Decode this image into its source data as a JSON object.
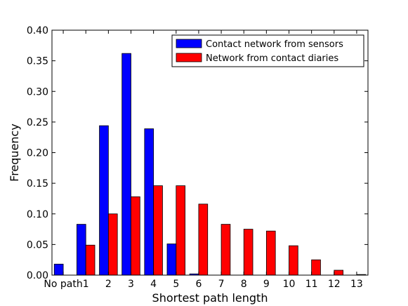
{
  "chart_data": {
    "type": "bar",
    "xlabel": "Shortest path length",
    "ylabel": "Frequency",
    "ylim": [
      0,
      0.4
    ],
    "yticks": [
      "0.00",
      "0.05",
      "0.10",
      "0.15",
      "0.20",
      "0.25",
      "0.30",
      "0.35",
      "0.40"
    ],
    "grid": false,
    "legend_position": "top-right",
    "categories": [
      "No path",
      "1",
      "2",
      "3",
      "4",
      "5",
      "6",
      "7",
      "8",
      "9",
      "10",
      "11",
      "12",
      "13"
    ],
    "series": [
      {
        "name": "Contact network from sensors",
        "color": "#0000ff",
        "values": [
          0.018,
          0.083,
          0.244,
          0.362,
          0.239,
          0.051,
          0.002,
          0,
          0,
          0,
          0,
          0,
          0,
          0
        ]
      },
      {
        "name": "Network from contact diaries",
        "color": "#ff0000",
        "values": [
          0,
          0.049,
          0.1,
          0.128,
          0.146,
          0.146,
          0.116,
          0.083,
          0.075,
          0.072,
          0.048,
          0.025,
          0.008,
          0.001
        ]
      }
    ]
  }
}
